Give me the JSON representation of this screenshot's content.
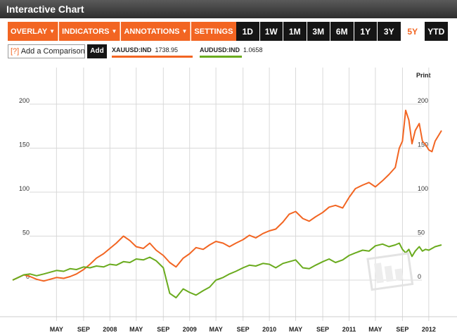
{
  "window": {
    "title": "Interactive Chart"
  },
  "toolbar": {
    "menus": [
      {
        "label": "OVERLAY",
        "arrow": "▼"
      },
      {
        "label": "INDICATORS",
        "arrow": "▼"
      },
      {
        "label": "ANNOTATIONS",
        "arrow": "▼"
      },
      {
        "label": "SETTINGS",
        "arrow": "▼"
      }
    ],
    "ranges": [
      "1D",
      "1W",
      "1M",
      "3M",
      "6M",
      "1Y",
      "3Y",
      "5Y",
      "YTD"
    ],
    "active_range": "5Y"
  },
  "compare": {
    "help": "[?]",
    "label": "Add a Comparison",
    "add_label": "Add"
  },
  "legend": [
    {
      "ticker": "XAUUSD:IND",
      "value": "1738.95",
      "color": "#f26522"
    },
    {
      "ticker": "AUDUSD:IND",
      "value": "1.0658",
      "color": "#6aab1e"
    }
  ],
  "print_label": "Print",
  "colors": {
    "accent": "#f26522",
    "dark": "#151515",
    "series_gold": "#f26522",
    "series_aud": "#6aab1e",
    "grid": "#d9d9d9"
  },
  "chart_data": {
    "type": "line",
    "ylim": [
      -20,
      210
    ],
    "y_ticks": [
      0,
      50,
      100,
      150,
      200
    ],
    "y_tick_labels": [
      "0",
      "50",
      "100",
      "150",
      "200"
    ],
    "x_range": [
      2006.78,
      2012.16
    ],
    "x_ticks": [
      {
        "label": "MAY",
        "x": 2007.33
      },
      {
        "label": "SEP",
        "x": 2007.67
      },
      {
        "label": "2008",
        "x": 2008.0
      },
      {
        "label": "MAY",
        "x": 2008.33
      },
      {
        "label": "SEP",
        "x": 2008.67
      },
      {
        "label": "2009",
        "x": 2009.0
      },
      {
        "label": "MAY",
        "x": 2009.33
      },
      {
        "label": "SEP",
        "x": 2009.67
      },
      {
        "label": "2010",
        "x": 2010.0
      },
      {
        "label": "MAY",
        "x": 2010.33
      },
      {
        "label": "SEP",
        "x": 2010.67
      },
      {
        "label": "2011",
        "x": 2011.0
      },
      {
        "label": "MAY",
        "x": 2011.33
      },
      {
        "label": "SEP",
        "x": 2011.67
      },
      {
        "label": "2012",
        "x": 2012.0
      }
    ],
    "series": [
      {
        "name": "XAUUSD:IND",
        "x": [
          2006.78,
          2006.85,
          2006.92,
          2007.0,
          2007.08,
          2007.17,
          2007.25,
          2007.33,
          2007.42,
          2007.5,
          2007.58,
          2007.67,
          2007.75,
          2007.83,
          2007.92,
          2008.0,
          2008.08,
          2008.17,
          2008.25,
          2008.33,
          2008.42,
          2008.5,
          2008.58,
          2008.67,
          2008.75,
          2008.83,
          2008.92,
          2009.0,
          2009.08,
          2009.17,
          2009.25,
          2009.33,
          2009.42,
          2009.5,
          2009.58,
          2009.67,
          2009.75,
          2009.83,
          2009.92,
          2010.0,
          2010.08,
          2010.17,
          2010.25,
          2010.33,
          2010.42,
          2010.5,
          2010.58,
          2010.67,
          2010.75,
          2010.83,
          2010.92,
          2011.0,
          2011.08,
          2011.17,
          2011.25,
          2011.33,
          2011.42,
          2011.5,
          2011.58,
          2011.63,
          2011.67,
          2011.71,
          2011.75,
          2011.79,
          2011.83,
          2011.88,
          2011.92,
          2011.96,
          2012.0,
          2012.04,
          2012.08,
          2012.16
        ],
        "y": [
          0,
          3,
          6,
          4,
          1,
          -1,
          1,
          3,
          2,
          4,
          7,
          12,
          18,
          25,
          30,
          36,
          42,
          50,
          45,
          38,
          36,
          42,
          34,
          28,
          20,
          15,
          25,
          30,
          37,
          35,
          40,
          44,
          42,
          38,
          42,
          46,
          51,
          48,
          53,
          56,
          58,
          66,
          75,
          78,
          70,
          67,
          72,
          77,
          83,
          85,
          82,
          94,
          104,
          108,
          111,
          106,
          113,
          120,
          128,
          150,
          158,
          193,
          182,
          155,
          170,
          178,
          158,
          154,
          148,
          146,
          158,
          170
        ]
      },
      {
        "name": "AUDUSD:IND",
        "x": [
          2006.78,
          2006.85,
          2006.92,
          2007.0,
          2007.08,
          2007.17,
          2007.25,
          2007.33,
          2007.42,
          2007.5,
          2007.58,
          2007.67,
          2007.75,
          2007.83,
          2007.92,
          2008.0,
          2008.08,
          2008.17,
          2008.25,
          2008.33,
          2008.42,
          2008.5,
          2008.58,
          2008.67,
          2008.75,
          2008.83,
          2008.92,
          2009.0,
          2009.08,
          2009.17,
          2009.25,
          2009.33,
          2009.42,
          2009.5,
          2009.58,
          2009.67,
          2009.75,
          2009.83,
          2009.92,
          2010.0,
          2010.08,
          2010.17,
          2010.25,
          2010.33,
          2010.42,
          2010.5,
          2010.58,
          2010.67,
          2010.75,
          2010.83,
          2010.92,
          2011.0,
          2011.08,
          2011.17,
          2011.25,
          2011.33,
          2011.42,
          2011.5,
          2011.58,
          2011.63,
          2011.67,
          2011.71,
          2011.75,
          2011.79,
          2011.83,
          2011.88,
          2011.92,
          2011.96,
          2012.0,
          2012.04,
          2012.08,
          2012.16
        ],
        "y": [
          0,
          3,
          6,
          7,
          5,
          7,
          9,
          11,
          10,
          13,
          12,
          15,
          14,
          16,
          15,
          18,
          17,
          21,
          20,
          24,
          23,
          26,
          22,
          14,
          -15,
          -20,
          -10,
          -14,
          -17,
          -12,
          -8,
          0,
          3,
          7,
          10,
          14,
          17,
          16,
          19,
          18,
          14,
          19,
          21,
          23,
          14,
          13,
          17,
          21,
          24,
          20,
          23,
          28,
          31,
          34,
          33,
          39,
          41,
          38,
          40,
          42,
          35,
          31,
          35,
          27,
          33,
          38,
          33,
          35,
          34,
          36,
          38,
          40
        ]
      }
    ]
  }
}
